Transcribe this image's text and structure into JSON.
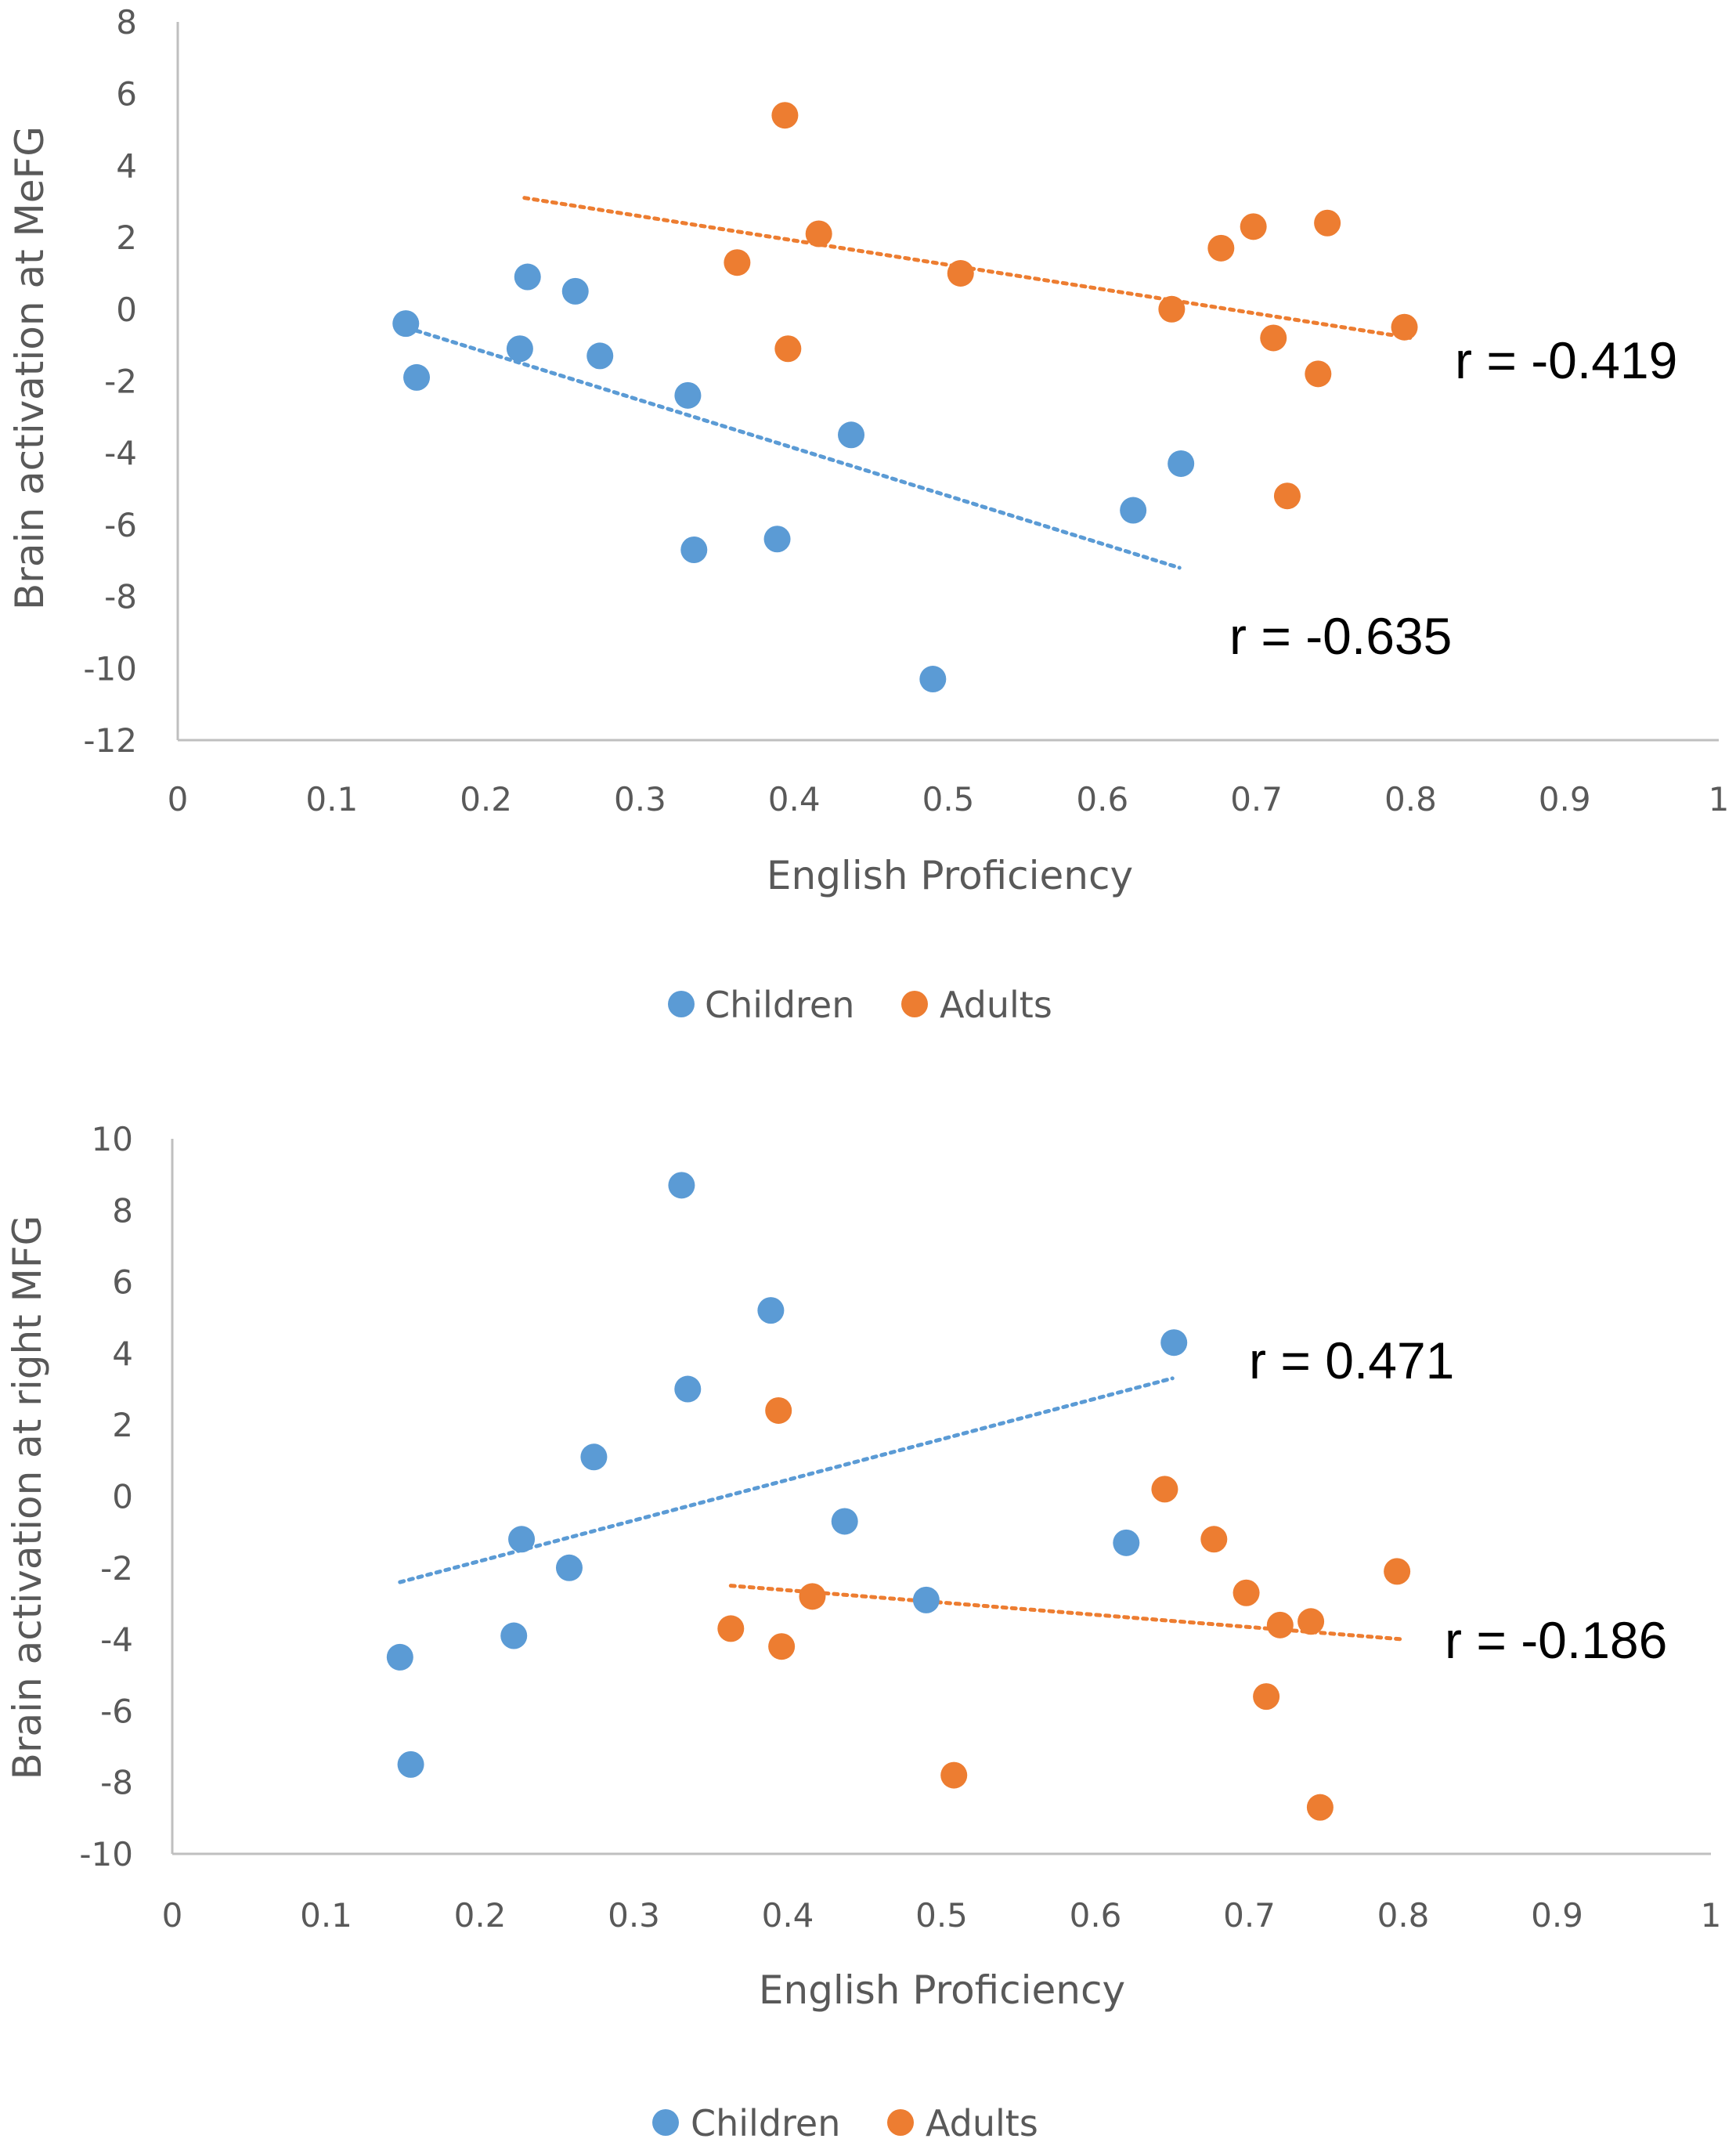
{
  "chart_data": [
    {
      "type": "scatter",
      "xlabel": "English Proficiency",
      "ylabel": "Brain activation at MeFG",
      "xlim": [
        0,
        1
      ],
      "ylim": [
        -12,
        8
      ],
      "xticks": [
        "0",
        "0.1",
        "0.2",
        "0.3",
        "0.4",
        "0.5",
        "0.6",
        "0.7",
        "0.8",
        "0.9",
        "1"
      ],
      "yticks": [
        "-12",
        "-10",
        "-8",
        "-6",
        "-4",
        "-2",
        "0",
        "2",
        "4",
        "6",
        "8"
      ],
      "series": [
        {
          "name": "Children",
          "color": "#5b9bd5",
          "points": [
            [
              0.148,
              -0.4
            ],
            [
              0.155,
              -1.9
            ],
            [
              0.222,
              -1.1
            ],
            [
              0.227,
              0.9
            ],
            [
              0.258,
              0.5
            ],
            [
              0.274,
              -1.3
            ],
            [
              0.331,
              -2.4
            ],
            [
              0.335,
              -6.7
            ],
            [
              0.389,
              -6.4
            ],
            [
              0.437,
              -3.5
            ],
            [
              0.49,
              -10.3
            ],
            [
              0.62,
              -5.6
            ],
            [
              0.651,
              -4.3
            ]
          ],
          "trendline": [
            [
              0.155,
              -0.6
            ],
            [
              0.65,
              -7.2
            ]
          ],
          "r_label": "r = -0.635"
        },
        {
          "name": "Adults",
          "color": "#ed7d31",
          "points": [
            [
              0.363,
              1.3
            ],
            [
              0.394,
              5.4
            ],
            [
              0.396,
              -1.1
            ],
            [
              0.416,
              2.1
            ],
            [
              0.508,
              1.0
            ],
            [
              0.645,
              0.0
            ],
            [
              0.677,
              1.7
            ],
            [
              0.698,
              2.3
            ],
            [
              0.711,
              -0.8
            ],
            [
              0.72,
              -5.2
            ],
            [
              0.74,
              -1.8
            ],
            [
              0.746,
              2.4
            ],
            [
              0.796,
              -0.5
            ]
          ],
          "trendline": [
            [
              0.225,
              3.1
            ],
            [
              0.8,
              -0.8
            ]
          ],
          "r_label": "r = -0.419"
        }
      ],
      "legend": [
        "Children",
        "Adults"
      ]
    },
    {
      "type": "scatter",
      "xlabel": "English Proficiency",
      "ylabel": "Brain activation at right MFG",
      "xlim": [
        0,
        1
      ],
      "ylim": [
        -10,
        10
      ],
      "xticks": [
        "0",
        "0.1",
        "0.2",
        "0.3",
        "0.4",
        "0.5",
        "0.6",
        "0.7",
        "0.8",
        "0.9",
        "1"
      ],
      "yticks": [
        "-10",
        "-8",
        "-6",
        "-4",
        "-2",
        "0",
        "2",
        "4",
        "6",
        "8",
        "10"
      ],
      "series": [
        {
          "name": "Children",
          "color": "#5b9bd5",
          "points": [
            [
              0.148,
              -4.5
            ],
            [
              0.155,
              -7.5
            ],
            [
              0.222,
              -3.9
            ],
            [
              0.227,
              -1.2
            ],
            [
              0.258,
              -2.0
            ],
            [
              0.274,
              1.1
            ],
            [
              0.331,
              8.7
            ],
            [
              0.335,
              3.0
            ],
            [
              0.389,
              5.2
            ],
            [
              0.437,
              -0.7
            ],
            [
              0.49,
              -2.9
            ],
            [
              0.62,
              -1.3
            ],
            [
              0.651,
              4.3
            ]
          ],
          "trendline": [
            [
              0.148,
              -2.4
            ],
            [
              0.65,
              3.3
            ]
          ],
          "r_label": "r = 0.471"
        },
        {
          "name": "Adults",
          "color": "#ed7d31",
          "points": [
            [
              0.363,
              -3.7
            ],
            [
              0.394,
              2.4
            ],
            [
              0.396,
              -4.2
            ],
            [
              0.416,
              -2.8
            ],
            [
              0.508,
              -7.8
            ],
            [
              0.645,
              0.2
            ],
            [
              0.677,
              -1.2
            ],
            [
              0.698,
              -2.7
            ],
            [
              0.711,
              -5.6
            ],
            [
              0.72,
              -3.6
            ],
            [
              0.74,
              -3.5
            ],
            [
              0.746,
              -8.7
            ],
            [
              0.796,
              -2.1
            ]
          ],
          "trendline": [
            [
              0.363,
              -2.5
            ],
            [
              0.8,
              -4.0
            ]
          ],
          "r_label": "r = -0.186"
        }
      ],
      "legend": [
        "Children",
        "Adults"
      ]
    }
  ]
}
